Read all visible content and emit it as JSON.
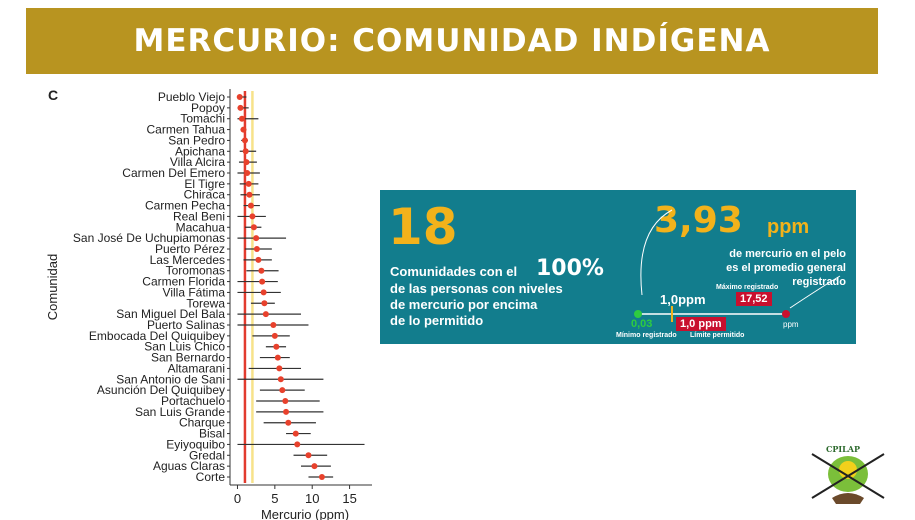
{
  "banner": {
    "title": "MERCURIO: COMUNIDAD INDÍGENA"
  },
  "chart_data": {
    "type": "scatter",
    "panel_label": "C",
    "xlabel": "Mercurio (ppm)",
    "ylabel": "Comunidad",
    "xlim": [
      -1,
      18
    ],
    "xticks": [
      0,
      5,
      10,
      15
    ],
    "reference_lines": [
      {
        "value": 1.0,
        "color": "#e23b2e"
      },
      {
        "value": 2.0,
        "color": "#f7e28a"
      }
    ],
    "point_color": "#e8412c",
    "bar_color": "#333333",
    "communities": [
      {
        "name": "Pueblo Viejo",
        "value": 0.3,
        "low": 0.0,
        "high": 1.2
      },
      {
        "name": "Popoy",
        "value": 0.4,
        "low": 0.0,
        "high": 1.5
      },
      {
        "name": "Tomachi",
        "value": 0.6,
        "low": 0.0,
        "high": 2.8
      },
      {
        "name": "Carmen Tahua",
        "value": 0.8,
        "low": 0.4,
        "high": 1.2
      },
      {
        "name": "San Pedro",
        "value": 1.0,
        "low": 0.5,
        "high": 1.4
      },
      {
        "name": "Apichana",
        "value": 1.1,
        "low": 0.3,
        "high": 2.5
      },
      {
        "name": "Villa Alcira",
        "value": 1.2,
        "low": 0.2,
        "high": 2.6
      },
      {
        "name": "Carmen Del Emero",
        "value": 1.3,
        "low": 0.0,
        "high": 3.0
      },
      {
        "name": "El Tigre",
        "value": 1.5,
        "low": 0.3,
        "high": 2.8
      },
      {
        "name": "Chiraca",
        "value": 1.6,
        "low": 0.4,
        "high": 3.0
      },
      {
        "name": "Carmen Pecha",
        "value": 1.8,
        "low": 0.8,
        "high": 3.0
      },
      {
        "name": "Real Beni",
        "value": 2.0,
        "low": 0.0,
        "high": 3.8
      },
      {
        "name": "Macahua",
        "value": 2.2,
        "low": 1.0,
        "high": 3.2
      },
      {
        "name": "San José De Uchupiamonas",
        "value": 2.5,
        "low": 0.0,
        "high": 6.5
      },
      {
        "name": "Puerto Pérez",
        "value": 2.6,
        "low": 1.0,
        "high": 4.6
      },
      {
        "name": "Las Mercedes",
        "value": 2.8,
        "low": 0.8,
        "high": 4.6
      },
      {
        "name": "Toromonas",
        "value": 3.2,
        "low": 1.2,
        "high": 5.5
      },
      {
        "name": "Carmen Florida",
        "value": 3.3,
        "low": 0.0,
        "high": 5.4
      },
      {
        "name": "Villa Fátima",
        "value": 3.5,
        "low": 0.0,
        "high": 5.8
      },
      {
        "name": "Torewa",
        "value": 3.6,
        "low": 1.8,
        "high": 5.0
      },
      {
        "name": "San Miguel Del Bala",
        "value": 3.8,
        "low": 0.0,
        "high": 8.5
      },
      {
        "name": "Puerto Salinas",
        "value": 4.8,
        "low": 0.0,
        "high": 9.5
      },
      {
        "name": "Embocada Del Quiquibey",
        "value": 5.0,
        "low": 2.0,
        "high": 7.0
      },
      {
        "name": "San Luis Chico",
        "value": 5.2,
        "low": 3.8,
        "high": 6.5
      },
      {
        "name": "San Bernardo",
        "value": 5.4,
        "low": 3.0,
        "high": 7.0
      },
      {
        "name": "Altamarani",
        "value": 5.6,
        "low": 1.5,
        "high": 8.5
      },
      {
        "name": "San Antonio de Sani",
        "value": 5.8,
        "low": 0.0,
        "high": 11.5
      },
      {
        "name": "Asunción Del Quiquibey",
        "value": 6.0,
        "low": 3.0,
        "high": 9.0
      },
      {
        "name": "Portachuelo",
        "value": 6.4,
        "low": 2.5,
        "high": 11.0
      },
      {
        "name": "San Luis Grande",
        "value": 6.5,
        "low": 2.5,
        "high": 11.5
      },
      {
        "name": "Charque",
        "value": 6.8,
        "low": 3.5,
        "high": 10.5
      },
      {
        "name": "Bisal",
        "value": 7.8,
        "low": 6.5,
        "high": 9.8
      },
      {
        "name": "Eyiyoquibo",
        "value": 8.0,
        "low": 0.0,
        "high": 17.0
      },
      {
        "name": "Gredal",
        "value": 9.5,
        "low": 7.5,
        "high": 12.0
      },
      {
        "name": "Aguas Claras",
        "value": 10.3,
        "low": 8.5,
        "high": 12.5
      },
      {
        "name": "Corte",
        "value": 11.3,
        "low": 9.5,
        "high": 12.8
      }
    ]
  },
  "info_panel": {
    "count_value": "18",
    "count_text_1": "Comunidades con el",
    "pct_value": "100%",
    "count_text_2": "de las personas con  niveles",
    "count_text_3": "de mercurio por encima",
    "count_text_4": "de lo permitido",
    "avg_value": "3,93",
    "avg_unit": "ppm",
    "avg_text_1": "de mercurio en el pelo",
    "avg_text_2": "es el promedio general",
    "avg_text_3": "registrado",
    "limit_top_label": "1,0ppm",
    "max_label": "Máximo registrado",
    "max_value": "17,52",
    "min_value": "0,03",
    "min_label": "Mínimo registrado",
    "limit_badge": "1,0 ppm",
    "limit_label": "Límite permitido",
    "scale_unit": "ppm"
  },
  "logo": {
    "text": "CPILAP"
  }
}
